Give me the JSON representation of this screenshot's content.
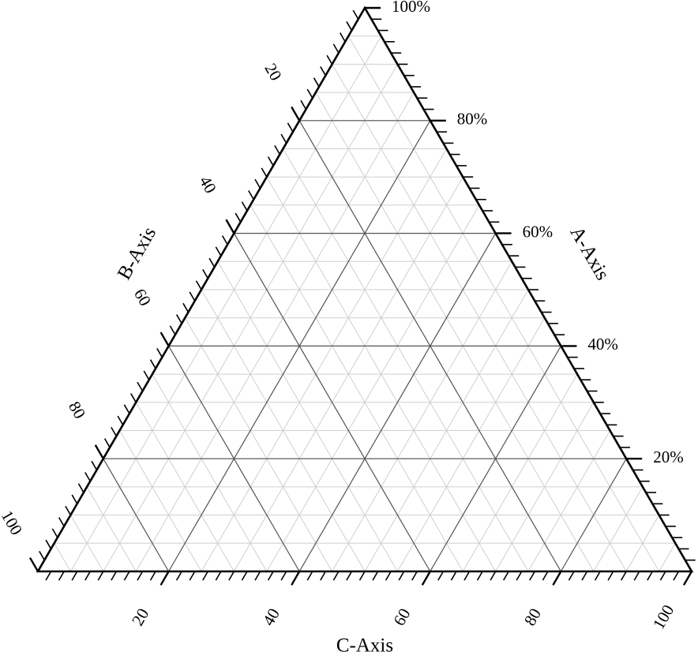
{
  "chart_data": {
    "type": "ternary",
    "a_axis": {
      "title": "A-Axis",
      "lim": [
        0,
        100
      ],
      "ticks": [
        {
          "value": 20,
          "label": "20%"
        },
        {
          "value": 40,
          "label": "40%"
        },
        {
          "value": 60,
          "label": "60%"
        },
        {
          "value": 80,
          "label": "80%"
        },
        {
          "value": 100,
          "label": "100%"
        }
      ]
    },
    "b_axis": {
      "title": "B-Axis",
      "lim": [
        0,
        100
      ],
      "ticks": [
        20,
        40,
        60,
        80,
        100
      ]
    },
    "c_axis": {
      "title": "C-Axis",
      "lim": [
        0,
        100
      ],
      "ticks": [
        20,
        40,
        60,
        80,
        100
      ]
    },
    "grid": true,
    "minor_grid_step": 5,
    "minor_tick_step": 2
  }
}
